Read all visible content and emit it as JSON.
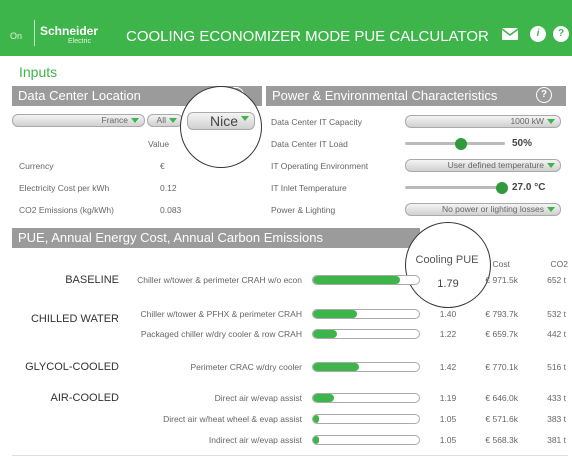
{
  "header": {
    "brand_prefix": "On",
    "brand": "Schneider",
    "brand_sub": "Electric",
    "title": "COOLING ECONOMIZER MODE PUE CALCULATOR"
  },
  "inputs_label": "Inputs",
  "location": {
    "title": "Data Center Location",
    "country": "France",
    "region": "All",
    "city": "Nice",
    "value_header": "Value",
    "rows": [
      {
        "label": "Currency",
        "value": "€"
      },
      {
        "label": "Electricity Cost per kWh",
        "value": "0.12"
      },
      {
        "label": "CO2 Emissions (kg/kWh)",
        "value": "0.083"
      }
    ]
  },
  "power": {
    "title": "Power & Environmental Characteristics",
    "rows": [
      {
        "label": "Data Center IT Capacity",
        "value": "1000 kW"
      },
      {
        "label": "Data Center IT Load",
        "value": "50%"
      },
      {
        "label": "IT Operating Environment",
        "value": "User defined temperature"
      },
      {
        "label": "IT Inlet Temperature",
        "value": "27.0 °C"
      },
      {
        "label": "Power & Lighting",
        "value": "No power or lighting losses"
      }
    ]
  },
  "results": {
    "title": "PUE, Annual Energy Cost, Annual Carbon Emissions",
    "columns": {
      "pue": "Cooling PUE",
      "cost": "Cost",
      "co2": "CO2"
    },
    "groups": [
      {
        "name": "BASELINE",
        "rows": [
          {
            "config": "Chiller w/tower & perimeter CRAH w/o econ",
            "pue": "1.79",
            "cost": "€ 971.5k",
            "co2": "652 t"
          }
        ]
      },
      {
        "name": "CHILLED WATER",
        "rows": [
          {
            "config": "Chiller w/tower & PFHX & perimeter CRAH",
            "pue": "1.40",
            "cost": "€ 793.7k",
            "co2": "532 t"
          },
          {
            "config": "Packaged chiller w/dry cooler & row CRAH",
            "pue": "1.22",
            "cost": "€ 659.7k",
            "co2": "442 t"
          }
        ]
      },
      {
        "name": "GLYCOL-COOLED",
        "rows": [
          {
            "config": "Perimeter CRAC w/dry cooler",
            "pue": "1.42",
            "cost": "€ 770.1k",
            "co2": "516 t"
          }
        ]
      },
      {
        "name": "AIR-COOLED",
        "rows": [
          {
            "config": "Direct air w/evap assist",
            "pue": "1.19",
            "cost": "€ 646.0k",
            "co2": "433 t"
          },
          {
            "config": "Direct air w/heat wheel & evap assist",
            "pue": "1.05",
            "cost": "€ 571.6k",
            "co2": "383 t"
          },
          {
            "config": "Indirect air w/evap assist",
            "pue": "1.05",
            "cost": "€ 568.3k",
            "co2": "381 t"
          }
        ]
      }
    ]
  }
}
